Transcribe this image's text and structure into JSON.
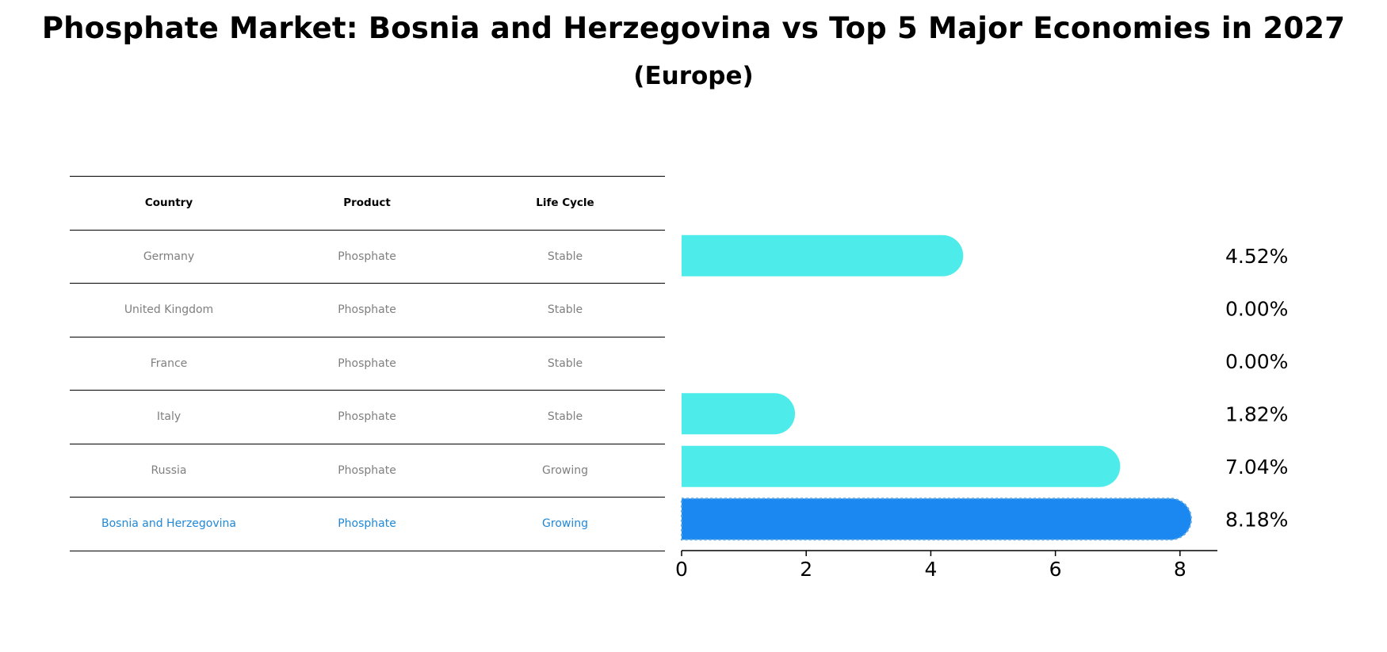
{
  "title": "Phosphate Market: Bosnia and Herzegovina vs Top 5 Major Economies in 2027",
  "subtitle": "(Europe)",
  "table": {
    "headers": [
      "Country",
      "Product",
      "Life Cycle"
    ],
    "rows": [
      {
        "country": "Germany",
        "product": "Phosphate",
        "life_cycle": "Stable"
      },
      {
        "country": "United Kingdom",
        "product": "Phosphate",
        "life_cycle": "Stable"
      },
      {
        "country": "France",
        "product": "Phosphate",
        "life_cycle": "Stable"
      },
      {
        "country": "Italy",
        "product": "Phosphate",
        "life_cycle": "Stable"
      },
      {
        "country": "Russia",
        "product": "Phosphate",
        "life_cycle": "Growing"
      },
      {
        "country": "Bosnia and Herzegovina",
        "product": "Phosphate",
        "life_cycle": "Growing"
      }
    ]
  },
  "chart_data": {
    "type": "bar",
    "orientation": "horizontal",
    "categories": [
      "Germany",
      "United Kingdom",
      "France",
      "Italy",
      "Russia",
      "Bosnia and Herzegovina"
    ],
    "values": [
      4.52,
      0.0,
      0.0,
      1.82,
      7.04,
      8.18
    ],
    "value_labels": [
      "4.52%",
      "0.00%",
      "0.00%",
      "1.82%",
      "7.04%",
      "8.18%"
    ],
    "highlight_index": 5,
    "xlim": [
      0,
      8.6
    ],
    "xticks": [
      0,
      2,
      4,
      6,
      8
    ],
    "colors": {
      "default": "#4deceb",
      "highlight": "#1a88f0",
      "text_highlight": "#1f88d8",
      "muted_text": "#7f7f7f"
    }
  }
}
